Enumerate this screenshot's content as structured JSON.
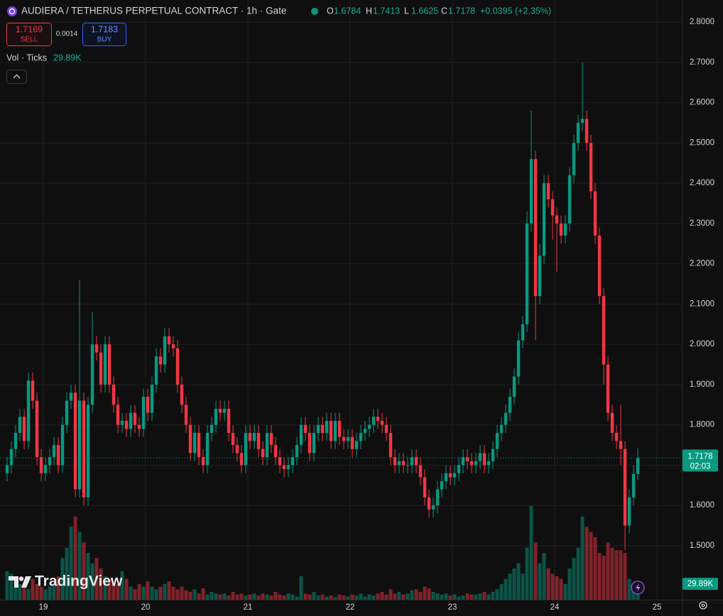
{
  "chart_data": {
    "type": "candlestick",
    "title": "AUDIERA / TETHERUS PERPETUAL CONTRACT · 1h · Gate",
    "ohlc_legend": [
      {
        "label": "O",
        "value": 1.6784
      },
      {
        "label": "H",
        "value": 1.7413
      },
      {
        "label": "L",
        "value": 1.6625
      },
      {
        "label": "C",
        "value": 1.7178
      }
    ],
    "change": "+0.0395 (+2.35%)",
    "sell_price": 1.7169,
    "sell_label": "SELL",
    "spread": 0.0014,
    "buy_price": 1.7183,
    "buy_label": "BUY",
    "volume_title": "Vol · Ticks",
    "volume_last_label": "29.89K",
    "countdown": "02:03",
    "watermark": "TradingView",
    "up_color": "#089981",
    "down_color": "#f23645",
    "grid": true,
    "open": [
      1.68,
      1.7,
      1.74,
      1.78,
      1.82,
      1.76,
      1.91,
      1.86,
      1.72,
      1.68,
      1.7,
      1.72,
      1.75,
      1.7,
      1.8,
      1.86,
      1.88,
      1.64,
      1.86,
      1.62,
      1.85,
      2.0,
      1.98,
      1.9,
      2.0,
      1.9,
      1.85,
      1.8,
      1.81,
      1.79,
      1.83,
      1.8,
      1.79,
      1.87,
      1.83,
      1.9,
      1.97,
      1.95,
      2.02,
      2.0,
      1.99,
      1.9,
      1.85,
      1.8,
      1.73,
      1.78,
      1.72,
      1.7,
      1.78,
      1.8,
      1.84,
      1.83,
      1.84,
      1.78,
      1.75,
      1.73,
      1.7,
      1.78,
      1.76,
      1.78,
      1.74,
      1.72,
      1.78,
      1.75,
      1.72,
      1.7,
      1.69,
      1.7,
      1.72,
      1.75,
      1.8,
      1.78,
      1.73,
      1.78,
      1.8,
      1.78,
      1.81,
      1.76,
      1.81,
      1.77,
      1.76,
      1.77,
      1.74,
      1.76,
      1.78,
      1.79,
      1.8,
      1.82,
      1.81,
      1.8,
      1.78,
      1.72,
      1.7,
      1.71,
      1.7,
      1.7,
      1.72,
      1.7,
      1.67,
      1.62,
      1.59,
      1.6,
      1.64,
      1.66,
      1.68,
      1.67,
      1.68,
      1.7,
      1.72,
      1.71,
      1.7,
      1.71,
      1.73,
      1.7,
      1.71,
      1.74,
      1.78,
      1.8,
      1.83,
      1.87,
      1.92,
      2.01,
      2.05,
      2.3,
      2.46,
      2.12,
      2.22,
      2.4,
      2.36,
      2.32,
      2.3,
      2.27,
      2.3,
      2.42,
      2.5,
      2.55,
      2.56,
      2.5,
      2.38,
      2.27,
      2.12,
      1.95,
      1.83,
      1.78,
      1.76,
      1.74,
      1.55,
      1.62,
      1.6784
    ],
    "high": [
      1.72,
      1.76,
      1.8,
      1.84,
      1.84,
      1.93,
      1.93,
      1.88,
      1.74,
      1.72,
      1.74,
      1.77,
      1.77,
      1.82,
      1.88,
      1.9,
      1.9,
      2.16,
      1.88,
      1.87,
      2.08,
      2.02,
      2.0,
      2.02,
      2.02,
      1.92,
      1.87,
      1.83,
      1.83,
      1.85,
      1.85,
      1.82,
      1.89,
      1.89,
      1.92,
      1.99,
      1.99,
      2.04,
      2.04,
      2.02,
      2.01,
      1.92,
      1.87,
      1.82,
      1.8,
      1.8,
      1.74,
      1.8,
      1.82,
      1.86,
      1.86,
      1.86,
      1.86,
      1.8,
      1.77,
      1.75,
      1.8,
      1.8,
      1.8,
      1.8,
      1.76,
      1.8,
      1.8,
      1.77,
      1.74,
      1.72,
      1.72,
      1.74,
      1.77,
      1.82,
      1.82,
      1.8,
      1.8,
      1.82,
      1.82,
      1.83,
      1.83,
      1.83,
      1.83,
      1.79,
      1.79,
      1.79,
      1.78,
      1.8,
      1.81,
      1.82,
      1.84,
      1.84,
      1.83,
      1.82,
      1.8,
      1.74,
      1.73,
      1.73,
      1.72,
      1.74,
      1.74,
      1.72,
      1.69,
      1.64,
      1.62,
      1.66,
      1.68,
      1.7,
      1.7,
      1.7,
      1.72,
      1.74,
      1.74,
      1.73,
      1.73,
      1.75,
      1.75,
      1.73,
      1.76,
      1.8,
      1.82,
      1.85,
      1.89,
      1.94,
      2.03,
      2.07,
      2.33,
      2.58,
      2.48,
      2.25,
      2.42,
      2.42,
      2.38,
      2.34,
      2.32,
      2.32,
      2.44,
      2.52,
      2.57,
      2.7,
      2.58,
      2.52,
      2.4,
      2.29,
      2.14,
      1.97,
      1.85,
      1.8,
      1.85,
      1.76,
      1.64,
      1.7,
      1.7413
    ],
    "low": [
      1.66,
      1.68,
      1.72,
      1.76,
      1.74,
      1.74,
      1.84,
      1.7,
      1.66,
      1.66,
      1.68,
      1.7,
      1.68,
      1.68,
      1.78,
      1.84,
      1.62,
      1.62,
      1.6,
      1.6,
      1.83,
      1.96,
      1.88,
      1.88,
      1.88,
      1.83,
      1.78,
      1.78,
      1.77,
      1.77,
      1.78,
      1.77,
      1.77,
      1.81,
      1.81,
      1.88,
      1.93,
      1.93,
      1.98,
      1.97,
      1.88,
      1.83,
      1.78,
      1.71,
      1.71,
      1.7,
      1.68,
      1.68,
      1.76,
      1.78,
      1.81,
      1.81,
      1.76,
      1.73,
      1.71,
      1.68,
      1.68,
      1.74,
      1.74,
      1.72,
      1.7,
      1.7,
      1.73,
      1.7,
      1.68,
      1.67,
      1.67,
      1.68,
      1.7,
      1.73,
      1.76,
      1.71,
      1.71,
      1.76,
      1.76,
      1.76,
      1.74,
      1.74,
      1.75,
      1.74,
      1.74,
      1.72,
      1.72,
      1.74,
      1.76,
      1.77,
      1.78,
      1.79,
      1.78,
      1.76,
      1.7,
      1.68,
      1.68,
      1.68,
      1.68,
      1.68,
      1.68,
      1.65,
      1.6,
      1.57,
      1.57,
      1.58,
      1.62,
      1.64,
      1.65,
      1.65,
      1.66,
      1.68,
      1.69,
      1.68,
      1.68,
      1.69,
      1.68,
      1.68,
      1.69,
      1.72,
      1.76,
      1.78,
      1.81,
      1.85,
      1.9,
      1.99,
      2.03,
      2.28,
      2.01,
      2.1,
      2.2,
      2.34,
      2.26,
      2.18,
      2.25,
      2.25,
      2.28,
      2.4,
      2.48,
      2.53,
      2.48,
      2.36,
      2.25,
      2.1,
      1.9,
      1.81,
      1.76,
      1.74,
      1.7,
      1.49,
      1.53,
      1.6,
      1.6625
    ],
    "close": [
      1.7,
      1.74,
      1.78,
      1.82,
      1.76,
      1.91,
      1.86,
      1.72,
      1.68,
      1.7,
      1.72,
      1.75,
      1.7,
      1.8,
      1.86,
      1.88,
      1.64,
      1.86,
      1.62,
      1.85,
      2.0,
      1.98,
      1.9,
      2.0,
      1.9,
      1.85,
      1.8,
      1.81,
      1.79,
      1.83,
      1.8,
      1.79,
      1.87,
      1.83,
      1.9,
      1.97,
      1.95,
      2.02,
      2.0,
      1.99,
      1.9,
      1.85,
      1.8,
      1.73,
      1.78,
      1.72,
      1.7,
      1.78,
      1.8,
      1.84,
      1.83,
      1.84,
      1.78,
      1.75,
      1.73,
      1.7,
      1.78,
      1.76,
      1.78,
      1.74,
      1.72,
      1.78,
      1.75,
      1.72,
      1.7,
      1.69,
      1.7,
      1.72,
      1.75,
      1.8,
      1.78,
      1.73,
      1.78,
      1.8,
      1.78,
      1.81,
      1.76,
      1.81,
      1.77,
      1.76,
      1.77,
      1.74,
      1.76,
      1.78,
      1.79,
      1.8,
      1.82,
      1.81,
      1.8,
      1.78,
      1.72,
      1.7,
      1.71,
      1.7,
      1.7,
      1.72,
      1.7,
      1.67,
      1.62,
      1.59,
      1.6,
      1.64,
      1.66,
      1.68,
      1.67,
      1.68,
      1.7,
      1.72,
      1.71,
      1.7,
      1.71,
      1.73,
      1.7,
      1.71,
      1.74,
      1.78,
      1.8,
      1.83,
      1.87,
      1.92,
      2.01,
      2.05,
      2.3,
      2.46,
      2.12,
      2.22,
      2.4,
      2.36,
      2.32,
      2.3,
      2.27,
      2.3,
      2.42,
      2.5,
      2.55,
      2.56,
      2.5,
      2.38,
      2.27,
      2.12,
      1.95,
      1.83,
      1.78,
      1.76,
      1.74,
      1.55,
      1.62,
      1.6784,
      1.7178
    ],
    "volume": [
      55000,
      50000,
      35000,
      30000,
      25000,
      20000,
      40000,
      30000,
      25000,
      20000,
      25000,
      30000,
      45000,
      80000,
      100000,
      140000,
      160000,
      130000,
      110000,
      90000,
      70000,
      80000,
      60000,
      45000,
      40000,
      35000,
      30000,
      55000,
      40000,
      25000,
      20000,
      30000,
      25000,
      35000,
      25000,
      20000,
      25000,
      30000,
      35000,
      25000,
      20000,
      25000,
      18000,
      15000,
      20000,
      12000,
      22000,
      10000,
      15000,
      12000,
      10000,
      12000,
      8000,
      15000,
      10000,
      12000,
      8000,
      10000,
      12000,
      8000,
      12000,
      10000,
      8000,
      15000,
      10000,
      8000,
      12000,
      10000,
      6000,
      45000,
      12000,
      10000,
      15000,
      8000,
      10000,
      6000,
      8000,
      5000,
      10000,
      8000,
      6000,
      10000,
      8000,
      12000,
      6000,
      10000,
      8000,
      12000,
      15000,
      10000,
      20000,
      12000,
      15000,
      10000,
      12000,
      18000,
      20000,
      15000,
      25000,
      22000,
      15000,
      12000,
      10000,
      12000,
      8000,
      10000,
      6000,
      8000,
      12000,
      10000,
      10000,
      12000,
      15000,
      10000,
      15000,
      20000,
      30000,
      40000,
      50000,
      60000,
      70000,
      50000,
      100000,
      180000,
      110000,
      70000,
      90000,
      60000,
      50000,
      45000,
      40000,
      30000,
      60000,
      80000,
      100000,
      160000,
      140000,
      130000,
      120000,
      90000,
      85000,
      110000,
      100000,
      95000,
      95000,
      90000,
      40000,
      30000,
      29890
    ],
    "xlim": [
      -1.67,
      158.33
    ],
    "xticks": [
      {
        "value": 8.5,
        "label": "19"
      },
      {
        "value": 32.5,
        "label": "20"
      },
      {
        "value": 56.5,
        "label": "21"
      },
      {
        "value": 80.5,
        "label": "22"
      },
      {
        "value": 104.5,
        "label": "23"
      },
      {
        "value": 128.5,
        "label": "24"
      },
      {
        "value": 152.5,
        "label": "25"
      }
    ],
    "ylim": [
      1.366,
      2.855
    ],
    "yticks": [
      {
        "value": 1.5,
        "label": "1.5000"
      },
      {
        "value": 1.6,
        "label": "1.6000"
      },
      {
        "value": 1.7,
        "label": "1.7000"
      },
      {
        "value": 1.8,
        "label": "1.8000"
      },
      {
        "value": 1.9,
        "label": "1.9000"
      },
      {
        "value": 2.0,
        "label": "2.0000"
      },
      {
        "value": 2.1,
        "label": "2.1000"
      },
      {
        "value": 2.2,
        "label": "2.2000"
      },
      {
        "value": 2.3,
        "label": "2.3000"
      },
      {
        "value": 2.4,
        "label": "2.4000"
      },
      {
        "value": 2.5,
        "label": "2.5000"
      },
      {
        "value": 2.6,
        "label": "2.6000"
      },
      {
        "value": 2.7,
        "label": "2.7000"
      },
      {
        "value": 2.8,
        "label": "2.8000"
      }
    ]
  }
}
